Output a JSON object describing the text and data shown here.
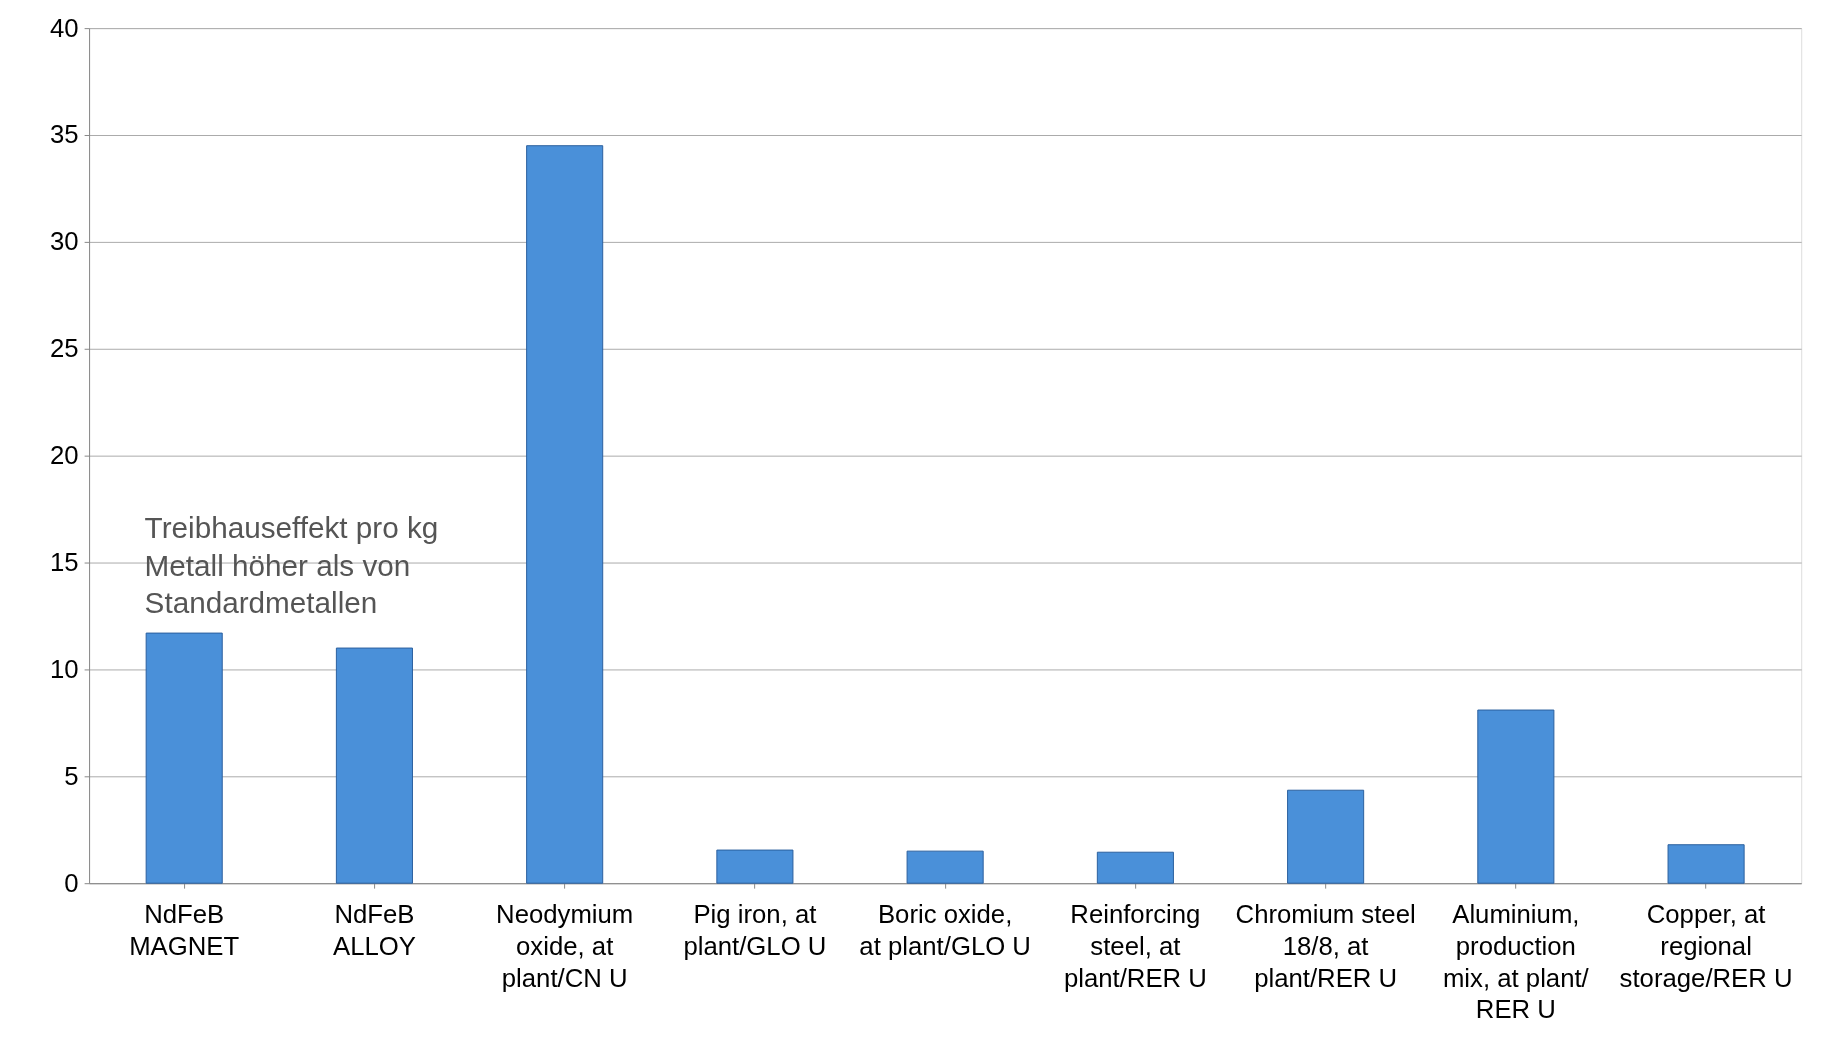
{
  "chart_data": {
    "type": "bar",
    "categories": [
      "NdFeB MAGNET",
      "NdFeB ALLOY",
      "Neodymium oxide, at plant/CN U",
      "Pig iron, at plant/GLO U",
      "Boric oxide, at plant/GLO U",
      "Reinforcing steel, at plant/RER U",
      "Chromium steel 18/8, at plant/RER U",
      "Aluminium, production mix, at plant/ RER U",
      "Copper, at regional storage/RER U"
    ],
    "values": [
      11.7,
      11.0,
      34.5,
      1.55,
      1.5,
      1.45,
      4.35,
      8.1,
      1.8
    ],
    "color": "#4a90d9",
    "ylim": [
      0,
      40
    ],
    "yticks": [
      0,
      5,
      10,
      15,
      20,
      25,
      30,
      35,
      40
    ],
    "grid": "y",
    "annotations": [
      {
        "text": "Treibhauseffekt pro kg Metall höher als von Standardmetallen",
        "x": "NdFeB MAGNET",
        "y": 11.7
      }
    ]
  }
}
